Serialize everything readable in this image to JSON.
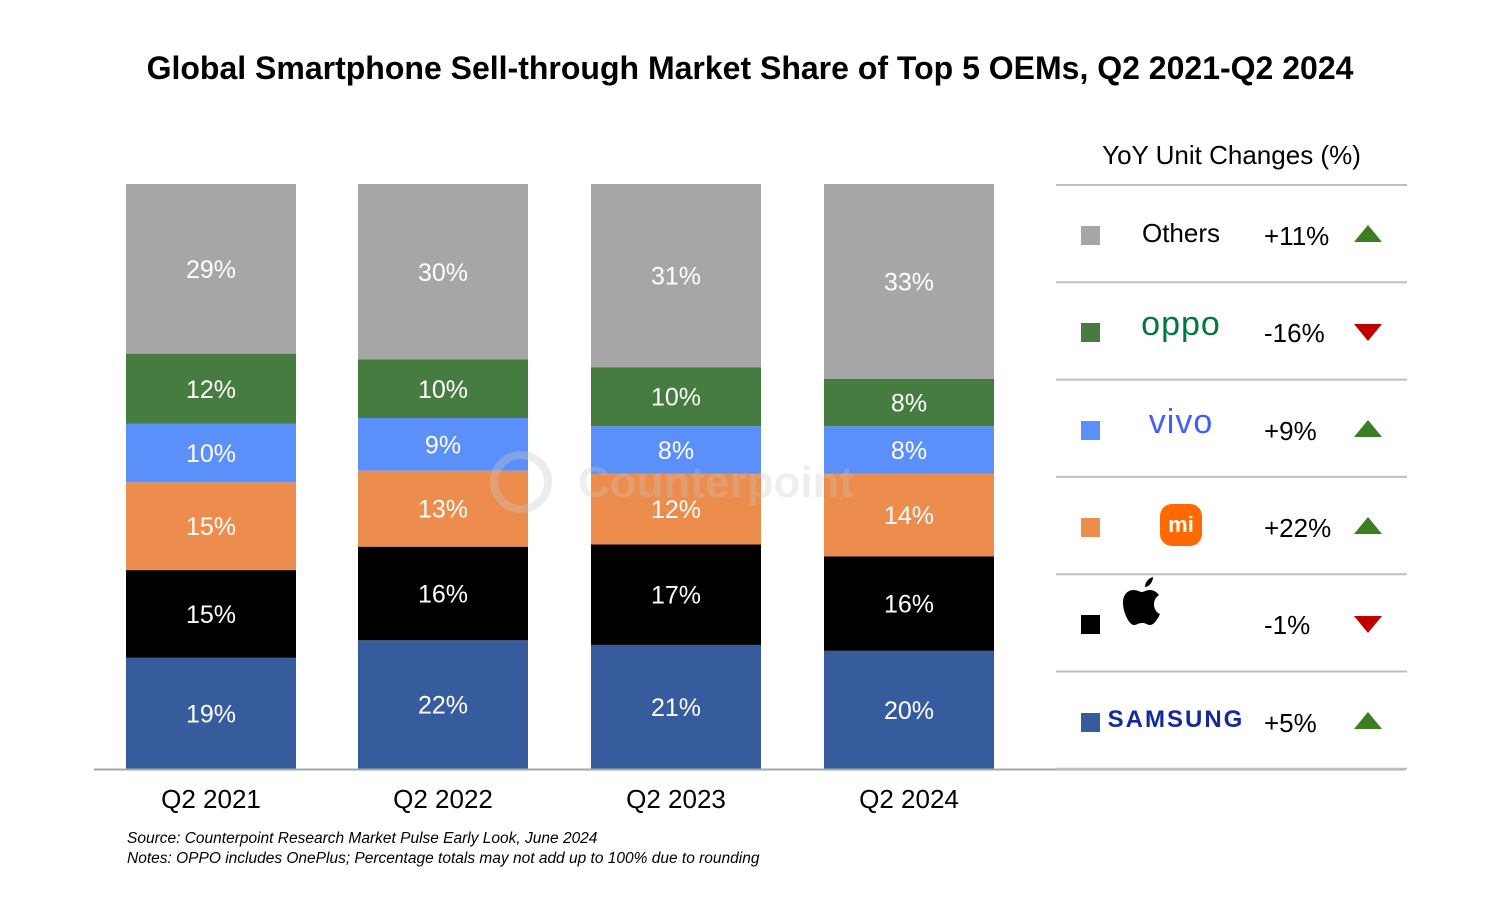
{
  "chart_data": {
    "type": "bar",
    "stacked": true,
    "title": "Global Smartphone Sell-through Market Share of Top 5 OEMs, Q2 2021-Q2 2024",
    "categories": [
      "Q2 2021",
      "Q2 2022",
      "Q2 2023",
      "Q2 2024"
    ],
    "unit": "%",
    "series": [
      {
        "name": "Samsung",
        "color": "#375c9e",
        "values": [
          19,
          22,
          21,
          20
        ]
      },
      {
        "name": "Apple",
        "color": "#000000",
        "values": [
          15,
          16,
          17,
          16
        ]
      },
      {
        "name": "Xiaomi",
        "color": "#ed8d4d",
        "values": [
          15,
          13,
          12,
          14
        ]
      },
      {
        "name": "vivo",
        "color": "#5b8ff9",
        "values": [
          10,
          9,
          8,
          8
        ]
      },
      {
        "name": "OPPO",
        "color": "#467c40",
        "values": [
          12,
          10,
          10,
          8
        ]
      },
      {
        "name": "Others",
        "color": "#a6a6a6",
        "values": [
          29,
          30,
          31,
          33
        ]
      }
    ],
    "grid": false,
    "legend_placement": "right"
  },
  "watermark": "Counterpoint",
  "legend": {
    "title": "YoY Unit Changes (%)",
    "items": [
      {
        "brand": "Others",
        "label": "Others",
        "color": "#a6a6a6",
        "change": "+11%",
        "direction": "up"
      },
      {
        "brand": "OPPO",
        "label": "oppo",
        "color": "#467c40",
        "change": "-16%",
        "direction": "down"
      },
      {
        "brand": "vivo",
        "label": "vivo",
        "color": "#5b8ff9",
        "change": "+9%",
        "direction": "up"
      },
      {
        "brand": "Xiaomi",
        "label": "mi",
        "color": "#ed8d4d",
        "change": "+22%",
        "direction": "up"
      },
      {
        "brand": "Apple",
        "label": "apple-logo",
        "color": "#000000",
        "change": "-1%",
        "direction": "down"
      },
      {
        "brand": "Samsung",
        "label": "SAMSUNG",
        "color": "#375c9e",
        "change": "+5%",
        "direction": "up"
      }
    ]
  },
  "source": "Source: Counterpoint Research Market Pulse Early Look, June 2024",
  "notes": "Notes: OPPO includes OnePlus; Percentage totals may not add up to 100% due to rounding"
}
